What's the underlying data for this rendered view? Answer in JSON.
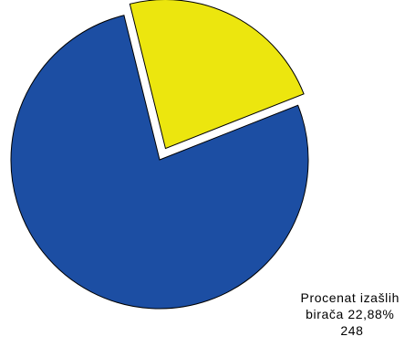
{
  "chart_data": {
    "type": "pie",
    "title": "",
    "slices": [
      {
        "value": 77.12,
        "color": "#1c4ea3",
        "exploded": false,
        "label_lines": []
      },
      {
        "value": 22.88,
        "color": "#ece60e",
        "exploded": true,
        "label_lines": [
          "Procenat izašlih",
          "birača 22,88%",
          "248"
        ]
      }
    ],
    "legend": false,
    "start_angle_deg": -21.5,
    "direction": "clockwise"
  }
}
